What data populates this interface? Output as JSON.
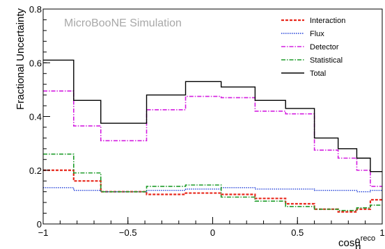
{
  "chart_data": {
    "type": "line",
    "title": "MicroBooNE Simulation",
    "xlabel": "cosθ",
    "xlabel_sub": "μ",
    "xlabel_sup": "reco",
    "ylabel": "Fractional Uncertainty",
    "xlim": [
      -1,
      1
    ],
    "ylim": [
      0,
      0.8
    ],
    "grid": false,
    "legend_position": "top-right",
    "x_ticks": [
      {
        "value": -1,
        "label": "−1"
      },
      {
        "value": -0.5,
        "label": "−0.5"
      },
      {
        "value": 0,
        "label": "0"
      },
      {
        "value": 0.5,
        "label": "0.5"
      },
      {
        "value": 1,
        "label": "1"
      }
    ],
    "y_ticks": [
      {
        "value": 0,
        "label": "0"
      },
      {
        "value": 0.2,
        "label": "0.2"
      },
      {
        "value": 0.4,
        "label": "0.4"
      },
      {
        "value": 0.6,
        "label": "0.6"
      },
      {
        "value": 0.8,
        "label": "0.8"
      }
    ],
    "bin_edges": [
      -1,
      -0.82,
      -0.66,
      -0.39,
      -0.16,
      0.05,
      0.25,
      0.43,
      0.6,
      0.74,
      0.85,
      0.93,
      1
    ],
    "series": [
      {
        "name": "Interaction",
        "color": "#e8281c",
        "dash": "4,2",
        "width": 2.2,
        "values": [
          0.2,
          0.16,
          0.12,
          0.11,
          0.115,
          0.11,
          0.095,
          0.075,
          0.055,
          0.045,
          0.055,
          0.09
        ]
      },
      {
        "name": "Flux",
        "color": "#1f3dd8",
        "dash": "1.5,1.5",
        "width": 1.4,
        "values": [
          0.135,
          0.125,
          0.12,
          0.125,
          0.13,
          0.135,
          0.13,
          0.13,
          0.125,
          0.125,
          0.12,
          0.125
        ]
      },
      {
        "name": "Detector",
        "color": "#d41ee0",
        "dash": "6,2,1.5,2",
        "width": 1.6,
        "values": [
          0.495,
          0.365,
          0.31,
          0.425,
          0.475,
          0.47,
          0.42,
          0.41,
          0.275,
          0.245,
          0.2,
          0.14
        ]
      },
      {
        "name": "Statistical",
        "color": "#1e9c2a",
        "dash": "6,2,1.5,2",
        "width": 1.6,
        "values": [
          0.26,
          0.19,
          0.12,
          0.14,
          0.145,
          0.1,
          0.085,
          0.065,
          0.055,
          0.05,
          0.06,
          0.07
        ]
      },
      {
        "name": "Total",
        "color": "#000000",
        "dash": "",
        "width": 1.4,
        "values": [
          0.61,
          0.46,
          0.375,
          0.48,
          0.53,
          0.51,
          0.46,
          0.43,
          0.32,
          0.28,
          0.245,
          0.195
        ]
      }
    ]
  }
}
